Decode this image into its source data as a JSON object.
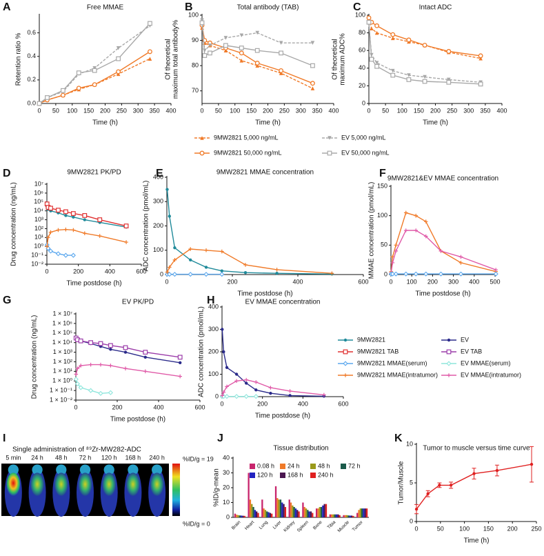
{
  "chart_data": [
    {
      "type": "line",
      "panel": "A",
      "title": "Free MMAE",
      "xlabel": "Time (h)",
      "ylabel": "Retention ratio %",
      "xlim": [
        0,
        400
      ],
      "xticks": [
        0,
        50,
        100,
        150,
        200,
        250,
        300,
        350,
        400
      ],
      "ylim": [
        0,
        0.75
      ],
      "yticks": [
        {
          "value": 0,
          "label": "0.0"
        },
        0.2,
        0.4,
        0.6
      ],
      "x": [
        0,
        24,
        72,
        120,
        168,
        240,
        336
      ],
      "series": [
        {
          "name": "9MW2821 5,000 ng/mL",
          "color": "#f07a28",
          "marker": "triangle",
          "dash": true,
          "values": [
            0,
            0.03,
            0.07,
            0.12,
            0.16,
            0.25,
            0.38
          ]
        },
        {
          "name": "9MW2821 50,000 ng/mL",
          "color": "#f07a28",
          "marker": "circle",
          "dash": false,
          "values": [
            0,
            0.03,
            0.07,
            0.13,
            0.16,
            0.27,
            0.44
          ]
        },
        {
          "name": "EV 5,000 ng/mL",
          "color": "#a8a8a8",
          "marker": "triangle-down",
          "dash": true,
          "values": [
            0,
            0.05,
            0.1,
            0.25,
            0.3,
            0.47,
            0.66
          ]
        },
        {
          "name": "EV 50,000 ng/mL",
          "color": "#a8a8a8",
          "marker": "square",
          "dash": false,
          "values": [
            0,
            0.05,
            0.11,
            0.26,
            0.28,
            0.38,
            0.68
          ]
        }
      ]
    },
    {
      "type": "line",
      "panel": "B",
      "title": "Total antibody (TAB)",
      "xlabel": "Time (h)",
      "ylabel": [
        "Of theoretical",
        "maximum total antibody%"
      ],
      "xlim": [
        0,
        400
      ],
      "xticks": [
        0,
        50,
        100,
        150,
        200,
        250,
        300,
        350,
        400
      ],
      "ylim": [
        65,
        100
      ],
      "yticks": [
        70,
        80,
        90,
        100
      ],
      "x": [
        0,
        8,
        24,
        72,
        120,
        168,
        240,
        336
      ],
      "series": [
        {
          "color": "#f07a28",
          "marker": "triangle",
          "dash": true,
          "values": [
            95,
            89,
            88,
            86,
            82,
            80,
            77,
            71
          ]
        },
        {
          "color": "#f07a28",
          "marker": "circle",
          "dash": false,
          "values": [
            96,
            90,
            89,
            87,
            85,
            81,
            78,
            73
          ]
        },
        {
          "color": "#a8a8a8",
          "marker": "triangle-down",
          "dash": true,
          "values": [
            98,
            86,
            88,
            91,
            92,
            93,
            89,
            89
          ]
        },
        {
          "color": "#a8a8a8",
          "marker": "square",
          "dash": false,
          "values": [
            97,
            84,
            85,
            88,
            87,
            86,
            85,
            80
          ]
        }
      ]
    },
    {
      "type": "line",
      "panel": "C",
      "title": "Intact ADC",
      "xlabel": "Time (h)",
      "ylabel": [
        "Of theoretical",
        "maximum ADC%"
      ],
      "xlim": [
        0,
        400
      ],
      "xticks": [
        0,
        50,
        100,
        150,
        200,
        250,
        300,
        350,
        400
      ],
      "ylim": [
        0,
        100
      ],
      "yticks": [
        0,
        20,
        40,
        60,
        80,
        100
      ],
      "x": [
        0,
        8,
        24,
        72,
        120,
        168,
        240,
        336
      ],
      "series": [
        {
          "color": "#f07a28",
          "marker": "triangle",
          "dash": true,
          "values": [
            96,
            85,
            80,
            74,
            70,
            66,
            58,
            51
          ]
        },
        {
          "color": "#f07a28",
          "marker": "circle",
          "dash": false,
          "values": [
            97,
            92,
            88,
            78,
            72,
            66,
            59,
            54
          ]
        },
        {
          "color": "#a8a8a8",
          "marker": "triangle-down",
          "dash": true,
          "values": [
            90,
            55,
            46,
            37,
            32,
            30,
            27,
            24
          ]
        },
        {
          "color": "#a8a8a8",
          "marker": "square",
          "dash": false,
          "values": [
            92,
            50,
            42,
            32,
            27,
            25,
            24,
            22
          ]
        }
      ]
    },
    {
      "type": "line",
      "panel": "D",
      "title": "9MW2821 PK/PD",
      "xlabel": "Time postdose (h)",
      "ylabel": "Drug concentration (ng/mL)",
      "yscale": "log",
      "xlim": [
        0,
        600
      ],
      "xticks": [
        0,
        200,
        400,
        600
      ],
      "ylim": [
        0.01,
        10000000
      ],
      "yticks": [
        {
          "value": 10000000,
          "label": "10⁷"
        },
        {
          "value": 1000000,
          "label": "10⁶"
        },
        {
          "value": 100000,
          "label": "10⁵"
        },
        {
          "value": 10000,
          "label": "10⁴"
        },
        {
          "value": 1000,
          "label": "10³"
        },
        {
          "value": 100,
          "label": "10²"
        },
        {
          "value": 10,
          "label": "10¹"
        },
        {
          "value": 1,
          "label": "10⁰"
        },
        {
          "value": 0.1,
          "label": "10⁻¹"
        },
        {
          "value": 0.01,
          "label": "10⁻²"
        }
      ],
      "x": [
        1,
        8,
        24,
        72,
        120,
        168,
        240,
        336,
        504
      ],
      "series": [
        {
          "name": "9MW2821",
          "color": "#1f8a9a",
          "marker": "dot",
          "values": [
            30000,
            15000,
            10000,
            6000,
            3000,
            2000,
            1000,
            500,
            150
          ]
        },
        {
          "name": "9MW2821 TAB",
          "color": "#e03030",
          "marker": "square",
          "values": [
            60000,
            25000,
            20000,
            12000,
            8000,
            5000,
            3000,
            1000,
            200
          ]
        },
        {
          "name": "9MW2821 MMAE(serum)",
          "color": "#5aa7ee",
          "marker": "diamond",
          "x": [
            1,
            8,
            24,
            72,
            120,
            168
          ],
          "values": [
            1.5,
            0.6,
            0.3,
            0.15,
            0.1,
            0.1
          ]
        },
        {
          "name": "9MW2821 MMAE(intratumor)",
          "color": "#f07a28",
          "marker": "plus",
          "values": [
            1,
            10,
            40,
            70,
            80,
            70,
            30,
            15,
            3
          ]
        }
      ]
    },
    {
      "type": "line",
      "panel": "E",
      "title": "9MW2821 MMAE concentration",
      "xlabel": "Time postdose (h)",
      "ylabel": "ADC concentration (pmol/mL)",
      "xlim": [
        0,
        600
      ],
      "xticks": [
        0,
        200,
        400,
        600
      ],
      "ylim": [
        0,
        400
      ],
      "yticks": [
        0,
        100,
        200,
        300,
        400
      ],
      "x": [
        1,
        8,
        24,
        72,
        120,
        168,
        240,
        336,
        504
      ],
      "series": [
        {
          "color": "#1f8a9a",
          "marker": "dot",
          "values": [
            350,
            240,
            110,
            60,
            30,
            15,
            8,
            5,
            2
          ]
        },
        {
          "color": "#5aa7ee",
          "marker": "diamond",
          "x": [
            1,
            8,
            24,
            72,
            120,
            168
          ],
          "values": [
            1,
            1,
            1,
            1,
            1,
            1
          ]
        },
        {
          "color": "#f07a28",
          "marker": "plus",
          "values": [
            10,
            30,
            60,
            105,
            100,
            95,
            40,
            20,
            5
          ]
        }
      ]
    },
    {
      "type": "line",
      "panel": "F",
      "title": "9MW2821&EV MMAE concentration",
      "xlabel": "Time postdose (h)",
      "ylabel": "MMAE concentration (pmol/mL)",
      "xlim": [
        0,
        500
      ],
      "xticks": [
        0,
        100,
        200,
        300,
        400,
        500
      ],
      "ylim": [
        0,
        150
      ],
      "yticks": [
        0,
        50,
        100,
        150
      ],
      "x": [
        1,
        8,
        24,
        72,
        120,
        168,
        240,
        336,
        504
      ],
      "series": [
        {
          "color": "#f07a28",
          "marker": "plus",
          "values": [
            5,
            30,
            50,
            105,
            100,
            90,
            40,
            20,
            5
          ]
        },
        {
          "color": "#e05aa8",
          "marker": "plus",
          "values": [
            3,
            20,
            40,
            75,
            75,
            65,
            40,
            30,
            8
          ]
        },
        {
          "color": "#5aa7ee",
          "marker": "diamond",
          "values": [
            1,
            1,
            1,
            1,
            1,
            1,
            1,
            1,
            1
          ]
        }
      ]
    },
    {
      "type": "line",
      "panel": "G",
      "title": "EV PK/PD",
      "xlabel": "Time postdose (h)",
      "ylabel": "Drug concentration (ng/mL)",
      "yscale": "log",
      "xlim": [
        0,
        600
      ],
      "xticks": [
        0,
        200,
        400,
        600
      ],
      "ylim": [
        0.01,
        10000000
      ],
      "yticks": [
        {
          "value": 10000000,
          "label": "1 × 10⁷"
        },
        {
          "value": 1000000,
          "label": "1 × 10⁶"
        },
        {
          "value": 100000,
          "label": "1 × 10⁵"
        },
        {
          "value": 10000,
          "label": "1 × 10⁴"
        },
        {
          "value": 1000,
          "label": "1 × 10³"
        },
        {
          "value": 100,
          "label": "1 × 10²"
        },
        {
          "value": 10,
          "label": "1 × 10¹"
        },
        {
          "value": 1,
          "label": "1 × 10⁰"
        },
        {
          "value": 0.1,
          "label": "1 × 10⁻¹"
        },
        {
          "value": 0.01,
          "label": "1 × 10⁻²"
        }
      ],
      "x": [
        1,
        8,
        24,
        72,
        120,
        168,
        240,
        336,
        504
      ],
      "series": [
        {
          "name": "EV",
          "color": "#2a2a8a",
          "marker": "dot",
          "values": [
            25000,
            20000,
            15000,
            8000,
            4000,
            2000,
            1000,
            300,
            80
          ]
        },
        {
          "name": "EV TAB",
          "color": "#9a3aa8",
          "marker": "square",
          "values": [
            30000,
            20000,
            15000,
            10000,
            8000,
            5000,
            3000,
            1000,
            300
          ]
        },
        {
          "name": "EV MMAE(serum)",
          "color": "#8ee6dc",
          "marker": "diamond",
          "x": [
            1,
            8,
            24,
            72,
            120,
            168
          ],
          "values": [
            1.5,
            0.5,
            0.2,
            0.1,
            0.05,
            0.06
          ]
        },
        {
          "name": "EV MMAE(intratumor)",
          "color": "#e05aa8",
          "marker": "plus",
          "values": [
            5,
            20,
            40,
            50,
            50,
            40,
            20,
            10,
            3
          ]
        }
      ]
    },
    {
      "type": "line",
      "panel": "H",
      "title": "EV MMAE concentration",
      "xlabel": "Time postdose (h)",
      "ylabel": "ADC concentration (pmol/mL)",
      "xlim": [
        0,
        600
      ],
      "xticks": [
        0,
        200,
        400,
        600
      ],
      "ylim": [
        0,
        400
      ],
      "yticks": [
        0,
        100,
        200,
        300,
        400
      ],
      "x": [
        1,
        8,
        24,
        72,
        120,
        168,
        240,
        336,
        504
      ],
      "series": [
        {
          "color": "#2a2a8a",
          "marker": "dot",
          "values": [
            300,
            200,
            130,
            100,
            60,
            30,
            15,
            5,
            2
          ]
        },
        {
          "color": "#8ee6dc",
          "marker": "diamond",
          "x": [
            1,
            8,
            24,
            72,
            120,
            168
          ],
          "values": [
            1,
            1,
            1,
            1,
            1,
            1
          ]
        },
        {
          "color": "#e05aa8",
          "marker": "plus",
          "values": [
            5,
            20,
            45,
            70,
            75,
            65,
            40,
            25,
            8
          ]
        }
      ]
    },
    {
      "type": "image",
      "panel": "I",
      "title": "Single administration of ⁸⁹Zr-MW282-ADC",
      "categories": [
        "5 min",
        "24 h",
        "48 h",
        "72 h",
        "120 h",
        "168 h",
        "240 h"
      ],
      "scale_labels": [
        "%ID/g = 19",
        "%ID/g = 0"
      ]
    },
    {
      "type": "bar",
      "panel": "J",
      "title": "Tissue distribution",
      "ylabel": "%ID/g-mean",
      "ylim": [
        0,
        40
      ],
      "yticks": [
        0,
        10,
        20,
        30,
        40
      ],
      "categories": [
        "Brain",
        "Heart",
        "Lung",
        "Liver",
        "Kidney",
        "Spleen",
        "Bone",
        "Tibia",
        "Muscle",
        "Tumor"
      ],
      "series": [
        {
          "name": "0.08 h",
          "color": "#c8246c",
          "values": [
            2.5,
            30,
            12,
            21,
            12,
            10,
            6,
            2,
            1.5,
            3
          ]
        },
        {
          "name": "24 h",
          "color": "#f07a28",
          "values": [
            1.8,
            12,
            6,
            13,
            10,
            7,
            6,
            2,
            1.5,
            5
          ]
        },
        {
          "name": "48 h",
          "color": "#9a9a1a",
          "values": [
            1.5,
            9,
            5,
            12,
            8,
            6,
            7,
            2,
            1.5,
            6
          ]
        },
        {
          "name": "72 h",
          "color": "#1a5a4a",
          "values": [
            1.3,
            7,
            4,
            12,
            7,
            5,
            7,
            2,
            1.3,
            6
          ]
        },
        {
          "name": "120 h",
          "color": "#2222c0",
          "values": [
            1.2,
            5,
            3.5,
            10,
            6,
            4,
            8,
            2,
            1.2,
            6
          ]
        },
        {
          "name": "168 h",
          "color": "#4a1650",
          "values": [
            1.1,
            4,
            3,
            9,
            5,
            4,
            9,
            2,
            1.2,
            6
          ]
        },
        {
          "name": "240 h",
          "color": "#e02020",
          "values": [
            1,
            3,
            2.5,
            7,
            4,
            3,
            9,
            1.5,
            1,
            6
          ]
        }
      ]
    },
    {
      "type": "line",
      "panel": "K",
      "title": "Tumor to muscle versus time curve",
      "xlabel": "Time (h)",
      "ylabel": "Tumor/Muscle",
      "xlim": [
        0,
        250
      ],
      "xticks": [
        0,
        50,
        100,
        150,
        200,
        250
      ],
      "ylim": [
        0,
        10
      ],
      "yticks": [
        0,
        5,
        10
      ],
      "x": [
        0.08,
        24,
        48,
        72,
        120,
        168,
        240
      ],
      "series": [
        {
          "color": "#e02020",
          "marker": "dot",
          "values": [
            1.6,
            3.6,
            4.7,
            4.7,
            6.2,
            6.6,
            7.4
          ],
          "errors": [
            0.6,
            0.4,
            0.3,
            0.4,
            0.7,
            0.7,
            2.3
          ]
        }
      ]
    }
  ]
}
